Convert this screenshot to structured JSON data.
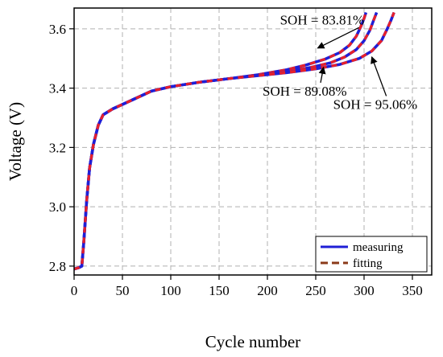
{
  "chart_data": {
    "type": "line",
    "xlabel": "Cycle number",
    "ylabel": "Voltage (V)",
    "xlim": [
      0,
      370
    ],
    "ylim": [
      2.77,
      3.67
    ],
    "xticks": [
      0,
      50,
      100,
      150,
      200,
      250,
      300,
      350
    ],
    "yticks": [
      2.8,
      3.0,
      3.2,
      3.4,
      3.6
    ],
    "grid": true,
    "legend": {
      "placement": "bottom-right",
      "entries": [
        {
          "label": "measuring",
          "color": "#1f1fd6",
          "style": "solid"
        },
        {
          "label": "fitting",
          "color": "#8b3a1a",
          "style": "dashed"
        }
      ]
    },
    "colors": {
      "measuring": "#1f1fd6",
      "fitting": "#e8202a"
    },
    "series": [
      {
        "name": "SOH = 83.81%",
        "x": [
          0,
          5,
          8,
          10,
          13,
          16,
          20,
          25,
          30,
          40,
          60,
          80,
          100,
          130,
          160,
          190,
          220,
          240,
          260,
          275,
          285,
          292,
          297,
          300,
          302
        ],
        "y": [
          2.79,
          2.795,
          2.8,
          2.88,
          3.02,
          3.13,
          3.21,
          3.275,
          3.31,
          3.33,
          3.36,
          3.39,
          3.405,
          3.42,
          3.432,
          3.445,
          3.462,
          3.478,
          3.498,
          3.52,
          3.545,
          3.575,
          3.61,
          3.635,
          3.655
        ]
      },
      {
        "name": "SOH = 89.08%",
        "x": [
          0,
          5,
          8,
          10,
          13,
          16,
          20,
          25,
          30,
          40,
          60,
          80,
          100,
          130,
          160,
          190,
          220,
          245,
          265,
          280,
          292,
          300,
          306,
          310,
          313
        ],
        "y": [
          2.79,
          2.795,
          2.8,
          2.88,
          3.02,
          3.13,
          3.21,
          3.275,
          3.31,
          3.33,
          3.36,
          3.39,
          3.405,
          3.42,
          3.432,
          3.443,
          3.456,
          3.47,
          3.485,
          3.505,
          3.53,
          3.56,
          3.595,
          3.63,
          3.655
        ]
      },
      {
        "name": "SOH = 95.06%",
        "x": [
          0,
          5,
          8,
          10,
          13,
          16,
          20,
          25,
          30,
          40,
          60,
          80,
          100,
          130,
          160,
          190,
          220,
          250,
          275,
          295,
          308,
          318,
          324,
          328,
          331
        ],
        "y": [
          2.79,
          2.795,
          2.8,
          2.88,
          3.02,
          3.13,
          3.21,
          3.275,
          3.31,
          3.33,
          3.36,
          3.39,
          3.405,
          3.42,
          3.432,
          3.442,
          3.452,
          3.465,
          3.48,
          3.5,
          3.525,
          3.56,
          3.6,
          3.63,
          3.655
        ]
      }
    ],
    "annotations": [
      {
        "text": "SOH = 83.81%",
        "x": 213,
        "y": 3.615,
        "arrow_to": [
          252,
          3.535
        ]
      },
      {
        "text": "SOH = 89.08%",
        "x": 195,
        "y": 3.375,
        "arrow_to": [
          258,
          3.47
        ]
      },
      {
        "text": "SOH = 95.06%",
        "x": 268,
        "y": 3.33,
        "arrow_to": [
          308,
          3.505
        ]
      }
    ]
  }
}
